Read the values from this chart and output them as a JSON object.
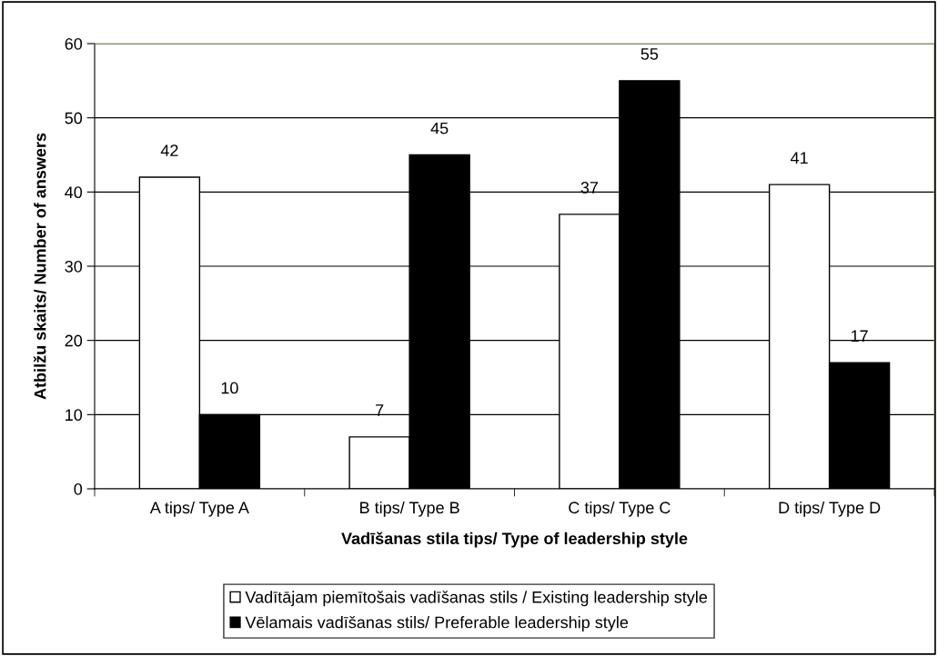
{
  "chart_data": {
    "type": "bar",
    "xlabel": "Vadīšanas stila tips/ Type of leadership style",
    "ylabel": "Atbilžu skaits/ Number of answers",
    "categories": [
      "A tips/ Type A",
      "B tips/ Type B",
      "C tips/ Type C",
      "D tips/ Type D"
    ],
    "series": [
      {
        "name": "Vadītājam piemītošais vadīšanas stils / Existing leadership style",
        "color": "#ffffff",
        "values": [
          42,
          7,
          37,
          41
        ]
      },
      {
        "name": "Vēlamais vadīšanas stils/ Preferable leadership style",
        "color": "#000000",
        "values": [
          10,
          45,
          55,
          17
        ]
      }
    ],
    "ylim": [
      0,
      60
    ],
    "yticks": [
      0,
      10,
      20,
      30,
      40,
      50,
      60
    ],
    "grid": "y",
    "legend": "bottom",
    "data_labels": true
  }
}
